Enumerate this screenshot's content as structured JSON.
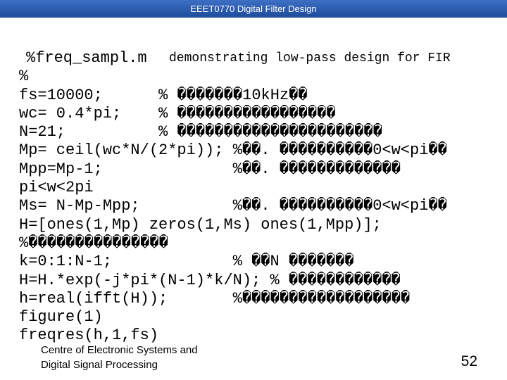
{
  "header": {
    "title": "EEET0770 Digital Filter Design"
  },
  "code": {
    "file_name": "%freq_sampl.m",
    "description": "demonstrating low-pass design for FIR",
    "lines": [
      "%",
      "fs=10000;      % �������10kHz��",
      "wc= 0.4*pi;    % �����������������",
      "N=21;          % ����������������������",
      "Mp= ceil(wc*N/(2*pi)); %��. ����������0<w<pi��",
      "Mpp=Mp-1;              %��. �������������",
      "pi<w<2pi",
      "Ms= N-Mp-Mpp;          %��. ����������0<w<pi��",
      "H=[ones(1,Mp) zeros(1,Ms) ones(1,Mpp)];",
      "%���������������",
      "k=0:1:N-1;             % ��N �������",
      "H=H.*exp(-j*pi*(N-1)*k/N); % ������������",
      "h=real(ifft(H));       %������������������",
      "figure(1)",
      "freqres(h,1,fs)"
    ]
  },
  "footer": {
    "organization": [
      "Centre of Electronic Systems and",
      "Digital Signal Processing"
    ],
    "page_number": "52"
  }
}
